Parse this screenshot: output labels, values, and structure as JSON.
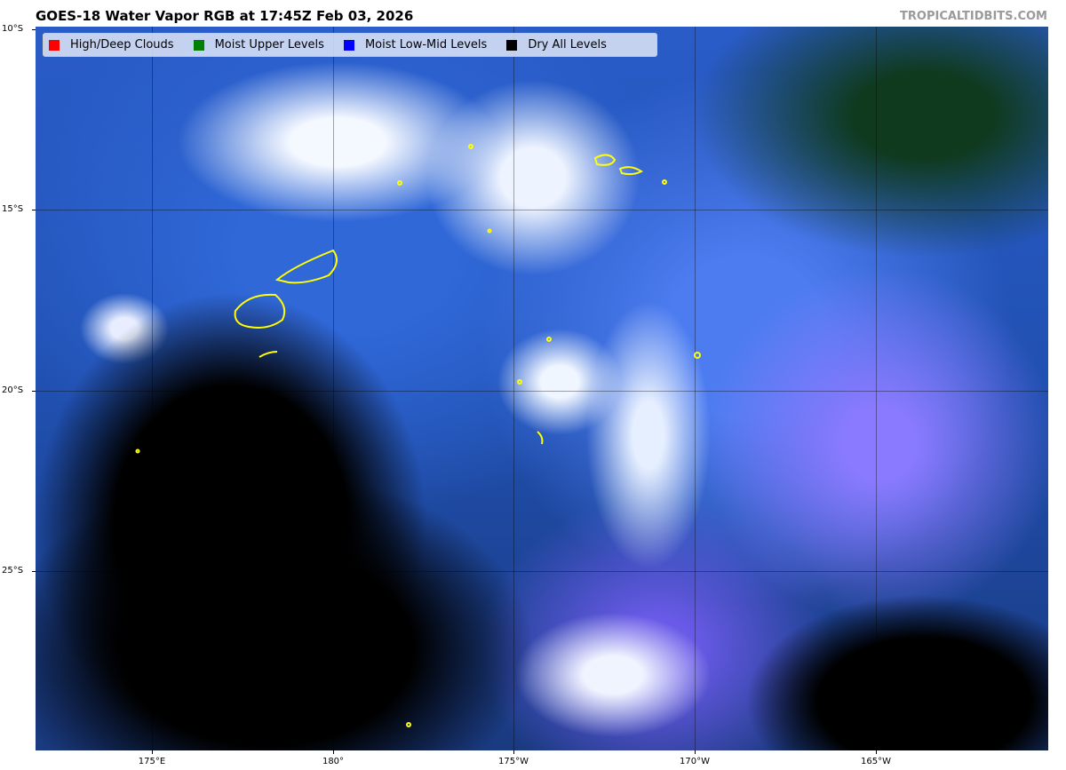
{
  "header": {
    "title": "GOES-18 Water Vapor RGB at 17:45Z Feb 03, 2026",
    "credit": "TROPICALTIDBITS.COM"
  },
  "legend": [
    {
      "label": "High/Deep Clouds",
      "color": "#ff0000"
    },
    {
      "label": "Moist Upper Levels",
      "color": "#008000"
    },
    {
      "label": "Moist Low-Mid Levels",
      "color": "#0000ff"
    },
    {
      "label": "Dry All Levels",
      "color": "#000000"
    }
  ],
  "axes": {
    "lat_ticks": [
      "10°S",
      "15°S",
      "20°S",
      "25°S"
    ],
    "lon_ticks": [
      "175°E",
      "180°",
      "175°W",
      "170°W",
      "165°W"
    ]
  },
  "colors": {
    "coastline": "#ffff00"
  }
}
